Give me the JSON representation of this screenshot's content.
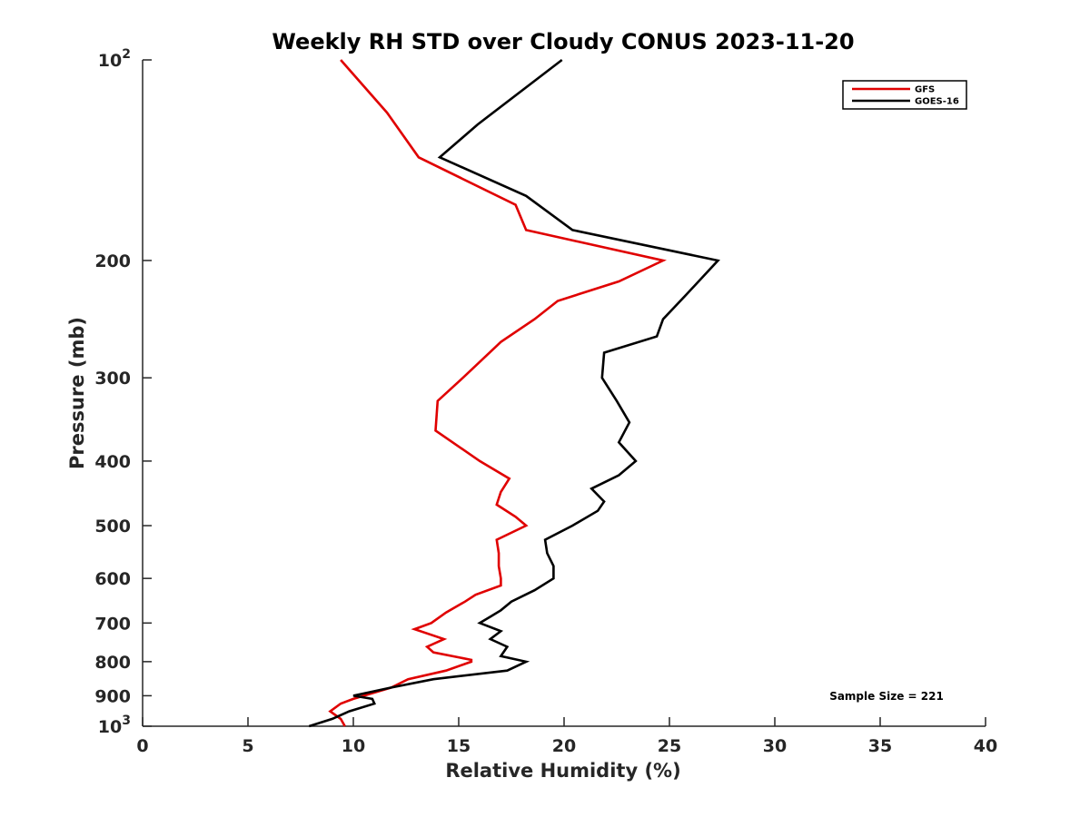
{
  "chart_data": {
    "type": "line",
    "title": "Weekly RH STD over Cloudy CONUS 2023-11-20",
    "xlabel": "Relative Humidity (%)",
    "ylabel": "Pressure (mb)",
    "xlim": [
      0,
      40
    ],
    "ylim": [
      100,
      1000
    ],
    "yscale": "log",
    "y_reversed": true,
    "grid": false,
    "legend_position": "top-right",
    "x_ticks": [
      0,
      5,
      10,
      15,
      20,
      25,
      30,
      35,
      40
    ],
    "x_tick_labels": [
      "0",
      "5",
      "10",
      "15",
      "20",
      "25",
      "30",
      "35",
      "40"
    ],
    "y_ticks": [
      100,
      200,
      300,
      400,
      500,
      600,
      700,
      800,
      900,
      1000
    ],
    "y_tick_labels": [
      {
        "base": "10",
        "exp": "2"
      },
      {
        "base": "200"
      },
      {
        "base": "300"
      },
      {
        "base": "400"
      },
      {
        "base": "500"
      },
      {
        "base": "600"
      },
      {
        "base": "700"
      },
      {
        "base": "800"
      },
      {
        "base": "900"
      },
      {
        "base": "10",
        "exp": "3"
      }
    ],
    "annotation": "Sample Size = 221",
    "series": [
      {
        "name": "GFS",
        "color": "#e00000",
        "points": [
          [
            9.6,
            1000
          ],
          [
            9.4,
            975
          ],
          [
            8.9,
            950
          ],
          [
            9.4,
            925
          ],
          [
            10.0,
            910
          ],
          [
            10.5,
            900
          ],
          [
            11.8,
            875
          ],
          [
            12.6,
            850
          ],
          [
            14.4,
            825
          ],
          [
            15.6,
            800
          ],
          [
            15.6,
            795
          ],
          [
            13.8,
            775
          ],
          [
            13.5,
            760
          ],
          [
            14.3,
            740
          ],
          [
            12.9,
            715
          ],
          [
            13.7,
            700
          ],
          [
            14.4,
            675
          ],
          [
            15.3,
            650
          ],
          [
            15.8,
            635
          ],
          [
            17.0,
            615
          ],
          [
            17.0,
            600
          ],
          [
            16.9,
            575
          ],
          [
            16.9,
            550
          ],
          [
            16.8,
            525
          ],
          [
            18.2,
            500
          ],
          [
            17.7,
            485
          ],
          [
            16.8,
            465
          ],
          [
            17.0,
            445
          ],
          [
            17.4,
            425
          ],
          [
            16.0,
            400
          ],
          [
            13.9,
            360
          ],
          [
            14.0,
            325
          ],
          [
            15.2,
            300
          ],
          [
            17.0,
            265
          ],
          [
            18.6,
            245
          ],
          [
            19.7,
            230
          ],
          [
            22.6,
            215
          ],
          [
            24.7,
            200
          ],
          [
            18.2,
            180
          ],
          [
            17.7,
            165
          ],
          [
            13.1,
            140
          ],
          [
            11.6,
            120
          ],
          [
            9.4,
            100
          ]
        ]
      },
      {
        "name": "GOES-16",
        "color": "#000000",
        "points": [
          [
            7.9,
            1000
          ],
          [
            9.0,
            975
          ],
          [
            9.8,
            950
          ],
          [
            11.0,
            925
          ],
          [
            10.9,
            910
          ],
          [
            10.0,
            900
          ],
          [
            11.8,
            875
          ],
          [
            13.8,
            850
          ],
          [
            17.3,
            825
          ],
          [
            18.2,
            800
          ],
          [
            17.0,
            785
          ],
          [
            17.3,
            760
          ],
          [
            16.5,
            740
          ],
          [
            17.0,
            720
          ],
          [
            16.0,
            700
          ],
          [
            16.5,
            685
          ],
          [
            17.0,
            670
          ],
          [
            17.5,
            650
          ],
          [
            18.6,
            625
          ],
          [
            19.5,
            600
          ],
          [
            19.5,
            575
          ],
          [
            19.2,
            550
          ],
          [
            19.1,
            525
          ],
          [
            20.4,
            500
          ],
          [
            21.6,
            475
          ],
          [
            21.9,
            460
          ],
          [
            21.3,
            440
          ],
          [
            22.6,
            420
          ],
          [
            23.4,
            400
          ],
          [
            22.6,
            375
          ],
          [
            23.1,
            350
          ],
          [
            22.5,
            325
          ],
          [
            21.8,
            300
          ],
          [
            21.9,
            275
          ],
          [
            24.4,
            260
          ],
          [
            24.7,
            245
          ],
          [
            25.8,
            225
          ],
          [
            27.3,
            200
          ],
          [
            20.4,
            180
          ],
          [
            18.2,
            160
          ],
          [
            14.1,
            140
          ],
          [
            15.9,
            125
          ],
          [
            19.9,
            100
          ]
        ]
      }
    ]
  }
}
